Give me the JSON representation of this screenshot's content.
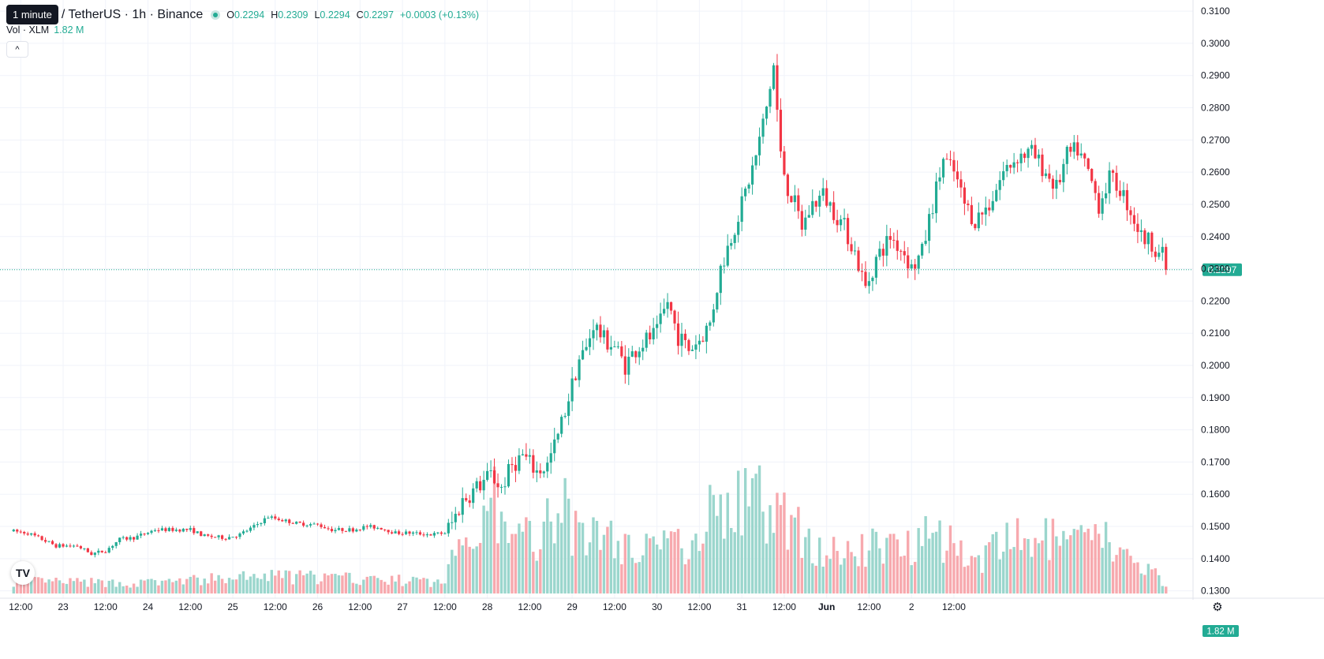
{
  "header": {
    "tooltip": "1 minute",
    "symbol": "/ TetherUS · 1h · Binance",
    "ohlc": {
      "o_label": "O",
      "o": "0.2294",
      "h_label": "H",
      "h": "0.2309",
      "l_label": "L",
      "l": "0.2294",
      "c_label": "C",
      "c": "0.2297"
    },
    "change": "+0.0003 (+0.13%)",
    "volume_label": "Vol · XLM",
    "volume_value": "1.82 M",
    "collapse_glyph": "^"
  },
  "colors": {
    "up": "#22ab94",
    "down": "#f23645",
    "up_volume": "#9bd6cd",
    "down_volume": "#f7a9ae",
    "grid": "#f0f3fa",
    "price_line": "#22ab94"
  },
  "icons": {
    "logo": "tradingview-logo-icon",
    "settings": "gear-icon"
  },
  "logo_text": "TV",
  "settings_glyph": "⚙",
  "chart_data": {
    "type": "candlestick",
    "interval": "1h",
    "y_axis": {
      "min": 0.126,
      "max": 0.311,
      "ticks": [
        "0.3100",
        "0.3000",
        "0.2900",
        "0.2800",
        "0.2700",
        "0.2600",
        "0.2500",
        "0.2400",
        "0.2300",
        "0.2200",
        "0.2100",
        "0.2000",
        "0.1900",
        "0.1800",
        "0.1700",
        "0.1600",
        "0.1500",
        "0.1400",
        "0.1300"
      ]
    },
    "x_axis": {
      "ticks": [
        {
          "label": "12:00",
          "h": -12
        },
        {
          "label": "23",
          "h": 0
        },
        {
          "label": "12:00",
          "h": 12
        },
        {
          "label": "24",
          "h": 24
        },
        {
          "label": "12:00",
          "h": 36
        },
        {
          "label": "25",
          "h": 48
        },
        {
          "label": "12:00",
          "h": 60
        },
        {
          "label": "26",
          "h": 72
        },
        {
          "label": "12:00",
          "h": 84
        },
        {
          "label": "27",
          "h": 96
        },
        {
          "label": "12:00",
          "h": 108
        },
        {
          "label": "28",
          "h": 120
        },
        {
          "label": "12:00",
          "h": 132
        },
        {
          "label": "29",
          "h": 144
        },
        {
          "label": "12:00",
          "h": 156
        },
        {
          "label": "30",
          "h": 168
        },
        {
          "label": "12:00",
          "h": 180
        },
        {
          "label": "31",
          "h": 192
        },
        {
          "label": "12:00",
          "h": 204
        },
        {
          "label": "Jun",
          "h": 216
        },
        {
          "label": "12:00",
          "h": 228
        },
        {
          "label": "2",
          "h": 240
        },
        {
          "label": "12:00",
          "h": 252
        }
      ]
    },
    "last_price": "0.2297",
    "last_volume": "1.82 M",
    "grid": true,
    "keypoints": [
      [
        -14,
        0.1485
      ],
      [
        -10,
        0.148
      ],
      [
        -6,
        0.146
      ],
      [
        -2,
        0.144
      ],
      [
        4,
        0.144
      ],
      [
        8,
        0.1415
      ],
      [
        12,
        0.1425
      ],
      [
        16,
        0.146
      ],
      [
        20,
        0.1465
      ],
      [
        26,
        0.149
      ],
      [
        32,
        0.149
      ],
      [
        36,
        0.149
      ],
      [
        40,
        0.147
      ],
      [
        46,
        0.1465
      ],
      [
        50,
        0.1475
      ],
      [
        54,
        0.15
      ],
      [
        58,
        0.153
      ],
      [
        62,
        0.152
      ],
      [
        66,
        0.151
      ],
      [
        72,
        0.1505
      ],
      [
        76,
        0.149
      ],
      [
        82,
        0.149
      ],
      [
        86,
        0.15
      ],
      [
        90,
        0.1495
      ],
      [
        94,
        0.148
      ],
      [
        98,
        0.148
      ],
      [
        104,
        0.1475
      ],
      [
        108,
        0.148
      ],
      [
        110,
        0.151
      ],
      [
        113,
        0.158
      ],
      [
        117,
        0.162
      ],
      [
        121,
        0.166
      ],
      [
        124,
        0.162
      ],
      [
        127,
        0.169
      ],
      [
        130,
        0.172
      ],
      [
        134,
        0.167
      ],
      [
        137,
        0.169
      ],
      [
        140,
        0.178
      ],
      [
        143,
        0.19
      ],
      [
        146,
        0.202
      ],
      [
        148,
        0.205
      ],
      [
        150,
        0.213
      ],
      [
        153,
        0.208
      ],
      [
        156,
        0.206
      ],
      [
        159,
        0.2
      ],
      [
        162,
        0.205
      ],
      [
        165,
        0.208
      ],
      [
        168,
        0.21
      ],
      [
        171,
        0.22
      ],
      [
        174,
        0.209
      ],
      [
        177,
        0.205
      ],
      [
        180,
        0.208
      ],
      [
        183,
        0.213
      ],
      [
        186,
        0.23
      ],
      [
        189,
        0.24
      ],
      [
        192,
        0.25
      ],
      [
        196,
        0.265
      ],
      [
        199,
        0.28
      ],
      [
        201,
        0.293
      ],
      [
        203,
        0.265
      ],
      [
        205,
        0.255
      ],
      [
        207,
        0.25
      ],
      [
        209,
        0.243
      ],
      [
        212,
        0.25
      ],
      [
        215,
        0.253
      ],
      [
        218,
        0.248
      ],
      [
        221,
        0.243
      ],
      [
        224,
        0.235
      ],
      [
        227,
        0.224
      ],
      [
        230,
        0.233
      ],
      [
        234,
        0.24
      ],
      [
        238,
        0.235
      ],
      [
        240,
        0.23
      ],
      [
        243,
        0.235
      ],
      [
        246,
        0.25
      ],
      [
        249,
        0.264
      ],
      [
        252,
        0.26
      ],
      [
        255,
        0.25
      ],
      [
        258,
        0.245
      ],
      [
        262,
        0.25
      ],
      [
        266,
        0.26
      ],
      [
        270,
        0.265
      ],
      [
        274,
        0.266
      ],
      [
        278,
        0.26
      ],
      [
        281,
        0.255
      ],
      [
        284,
        0.265
      ],
      [
        287,
        0.267
      ],
      [
        290,
        0.26
      ],
      [
        293,
        0.25
      ],
      [
        296,
        0.258
      ],
      [
        299,
        0.255
      ],
      [
        302,
        0.248
      ],
      [
        305,
        0.24
      ],
      [
        308,
        0.238
      ],
      [
        311,
        0.234
      ],
      [
        312,
        0.2297
      ]
    ],
    "volume_keypoints": [
      [
        -14,
        0.1
      ],
      [
        20,
        0.08
      ],
      [
        60,
        0.14
      ],
      [
        100,
        0.1
      ],
      [
        108,
        0.08
      ],
      [
        110,
        0.32
      ],
      [
        115,
        0.55
      ],
      [
        122,
        0.72
      ],
      [
        126,
        0.38
      ],
      [
        132,
        0.48
      ],
      [
        134,
        0.45
      ],
      [
        137,
        0.82
      ],
      [
        139,
        0.42
      ],
      [
        141,
        1.0
      ],
      [
        143,
        0.62
      ],
      [
        146,
        0.4
      ],
      [
        150,
        0.55
      ],
      [
        160,
        0.35
      ],
      [
        170,
        0.48
      ],
      [
        175,
        0.35
      ],
      [
        180,
        0.58
      ],
      [
        186,
        0.72
      ],
      [
        190,
        0.68
      ],
      [
        194,
        0.74
      ],
      [
        200,
        0.72
      ],
      [
        203,
        0.62
      ],
      [
        210,
        0.45
      ],
      [
        220,
        0.3
      ],
      [
        230,
        0.38
      ],
      [
        240,
        0.42
      ],
      [
        246,
        0.62
      ],
      [
        250,
        0.4
      ],
      [
        260,
        0.28
      ],
      [
        270,
        0.45
      ],
      [
        280,
        0.42
      ],
      [
        290,
        0.4
      ],
      [
        295,
        0.45
      ],
      [
        300,
        0.28
      ],
      [
        305,
        0.22
      ],
      [
        310,
        0.18
      ],
      [
        312,
        0.04
      ]
    ]
  }
}
